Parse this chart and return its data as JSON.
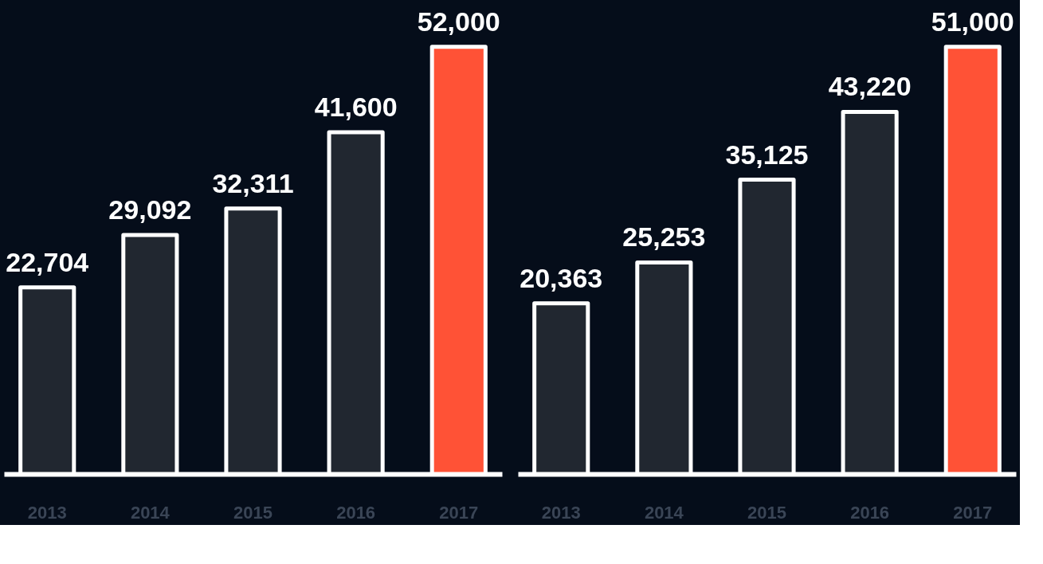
{
  "chart_data": [
    {
      "type": "bar",
      "categories": [
        "2013",
        "2014",
        "2015",
        "2016",
        "2017"
      ],
      "values": [
        22704,
        29092,
        32311,
        41600,
        52000
      ],
      "value_labels": [
        "22,704",
        "29,092",
        "32,311",
        "41,600",
        "52,000"
      ],
      "colors": [
        "#212730",
        "#212730",
        "#212730",
        "#212730",
        "#ff5236"
      ],
      "tick_labels": "x"
    },
    {
      "type": "bar",
      "categories": [
        "2013",
        "2014",
        "2015",
        "2016",
        "2017"
      ],
      "values": [
        20363,
        25253,
        35125,
        43220,
        51000
      ],
      "value_labels": [
        "20,363",
        "25,253",
        "35,125",
        "43,220",
        "51,000"
      ],
      "colors": [
        "#212730",
        "#212730",
        "#212730",
        "#212730",
        "#ff5236"
      ],
      "tick_labels": "x"
    }
  ]
}
